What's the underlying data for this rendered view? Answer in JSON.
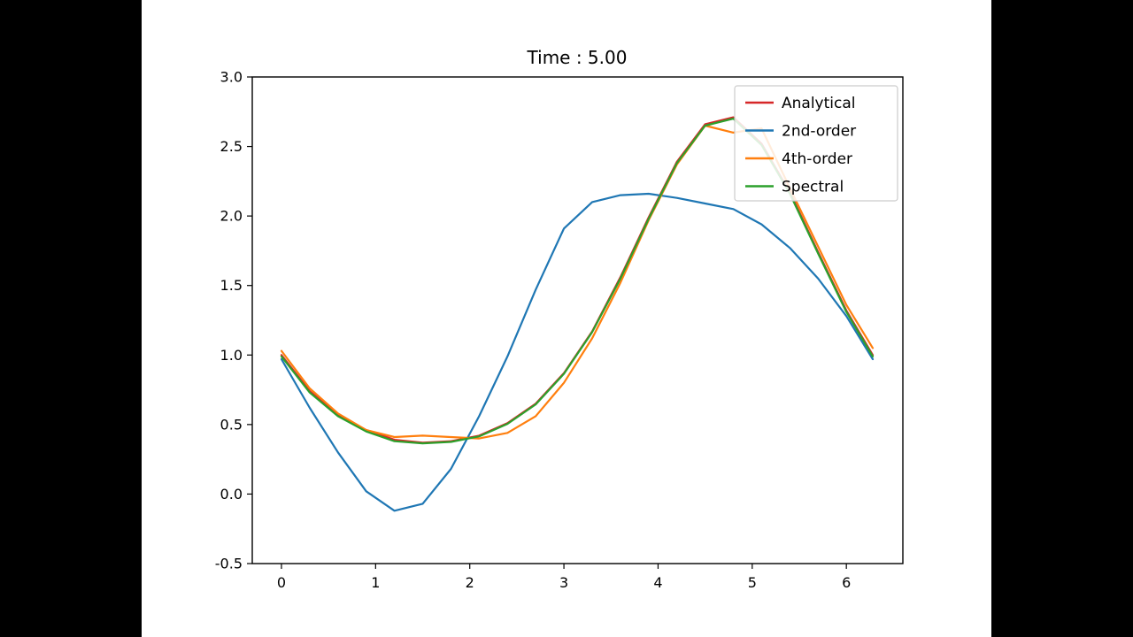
{
  "frame": {
    "background": "#000000",
    "canvas_background": "#ffffff"
  },
  "chart_data": {
    "type": "line",
    "title": "Time : 5.00",
    "xlabel": "",
    "ylabel": "",
    "xlim": [
      -0.31,
      6.6
    ],
    "ylim": [
      -0.5,
      3.0
    ],
    "grid": false,
    "xticks": [
      0,
      1,
      2,
      3,
      4,
      5,
      6
    ],
    "xtick_labels": [
      "0",
      "1",
      "2",
      "3",
      "4",
      "5",
      "6"
    ],
    "yticks": [
      -0.5,
      0.0,
      0.5,
      1.0,
      1.5,
      2.0,
      2.5,
      3.0
    ],
    "ytick_labels": [
      "-0.5",
      "0.0",
      "0.5",
      "1.0",
      "1.5",
      "2.0",
      "2.5",
      "3.0"
    ],
    "legend": {
      "position": "upper-right",
      "border_color": "#cccccc",
      "background": "#ffffff"
    },
    "x": [
      0,
      0.3,
      0.6,
      0.9,
      1.2,
      1.5,
      1.8,
      2.1,
      2.4,
      2.7,
      3.0,
      3.3,
      3.6,
      3.9,
      4.2,
      4.5,
      4.8,
      5.1,
      5.4,
      5.7,
      6.0,
      6.28
    ],
    "series": [
      {
        "name": "Analytical",
        "color": "#d62728",
        "values": [
          1.0,
          0.74,
          0.57,
          0.46,
          0.39,
          0.37,
          0.38,
          0.42,
          0.51,
          0.65,
          0.87,
          1.17,
          1.56,
          1.99,
          2.39,
          2.66,
          2.71,
          2.52,
          2.17,
          1.74,
          1.32,
          1.0
        ]
      },
      {
        "name": "2nd-order",
        "color": "#1f77b4",
        "values": [
          0.97,
          0.62,
          0.3,
          0.02,
          -0.12,
          -0.07,
          0.18,
          0.56,
          0.99,
          1.47,
          1.91,
          2.1,
          2.15,
          2.16,
          2.13,
          2.09,
          2.05,
          1.94,
          1.77,
          1.55,
          1.28,
          0.97
        ]
      },
      {
        "name": "4th-order",
        "color": "#ff7f0e",
        "values": [
          1.03,
          0.76,
          0.58,
          0.46,
          0.41,
          0.42,
          0.41,
          0.4,
          0.44,
          0.56,
          0.8,
          1.12,
          1.52,
          1.97,
          2.37,
          2.65,
          2.6,
          2.63,
          2.2,
          1.78,
          1.36,
          1.05
        ]
      },
      {
        "name": "Spectral",
        "color": "#2ca02c",
        "values": [
          0.99,
          0.73,
          0.56,
          0.45,
          0.38,
          0.365,
          0.375,
          0.415,
          0.505,
          0.645,
          0.865,
          1.165,
          1.55,
          1.98,
          2.38,
          2.65,
          2.7,
          2.51,
          2.16,
          1.73,
          1.31,
          0.99
        ]
      }
    ]
  }
}
